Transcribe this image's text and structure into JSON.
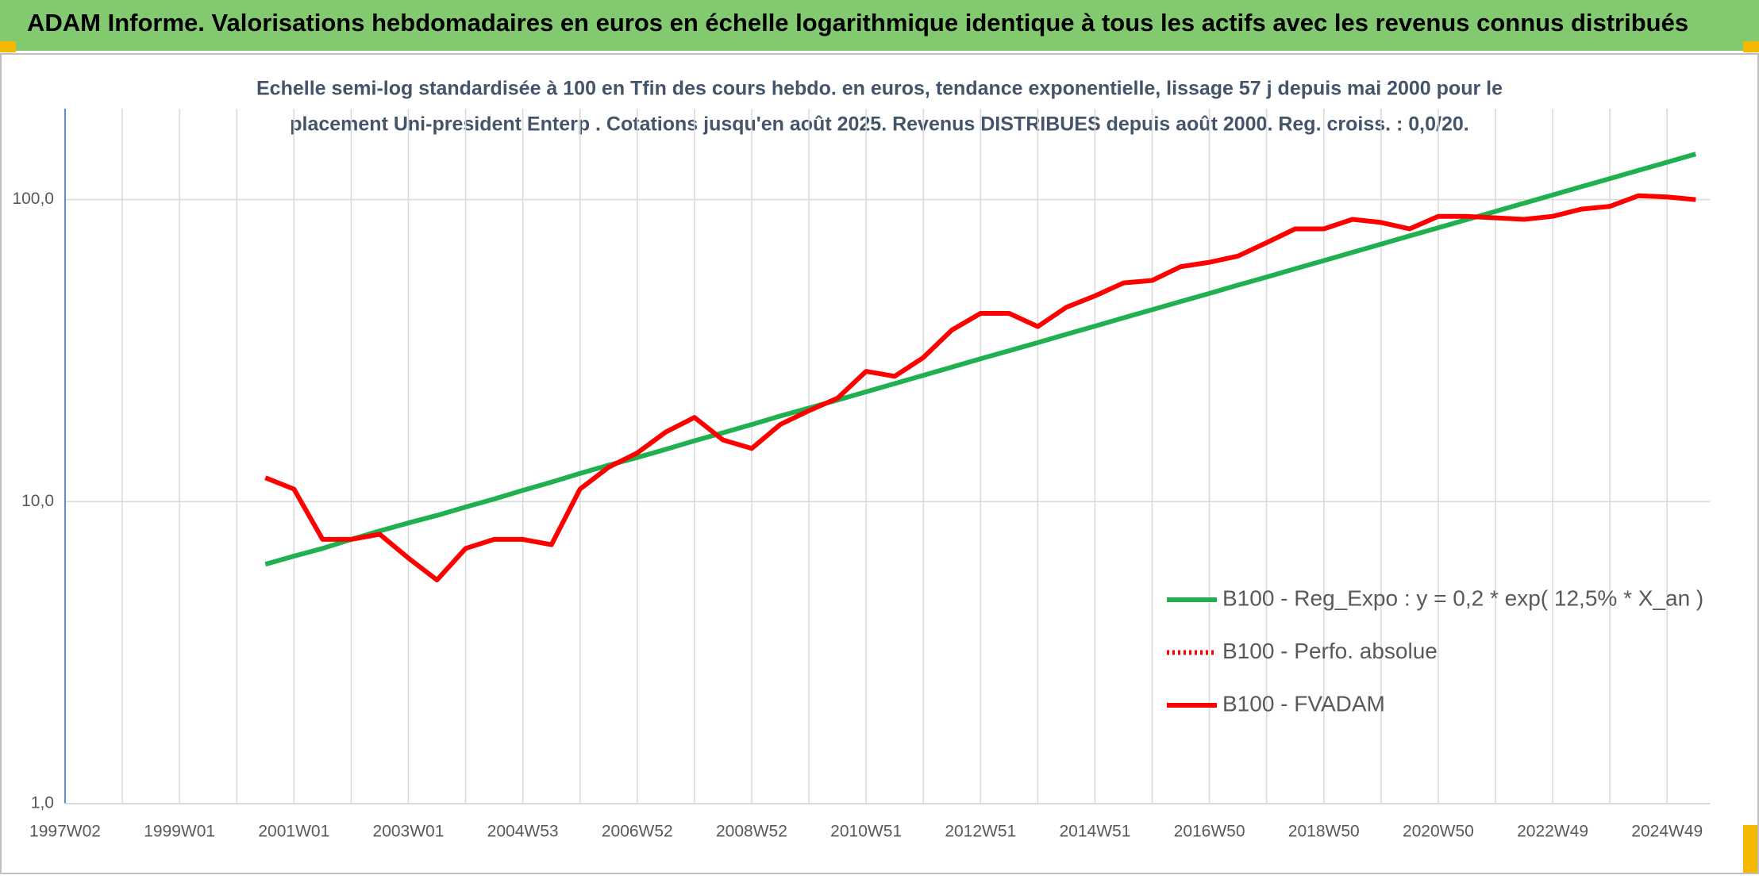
{
  "chart_data": {
    "type": "line",
    "title": "ADAM Informe. Valorisations hebdomadaires en euros en échelle logarithmique identique à tous les actifs avec les revenus connus distribués",
    "subtitle": [
      "Echelle semi-log standardisée à 100 en Tfin des cours hebdo. en euros, tendance exponentielle, lissage 57 j depuis mai 2000 pour le",
      "placement Uni-president Enterp . Cotations jusqu'en août 2025. Revenus DISTRIBUES depuis août 2000. Reg. croiss. : 0,0/20."
    ],
    "log_scale": true,
    "grid": true,
    "legend": "lower right",
    "ylim": [
      1,
      200
    ],
    "yticks": [
      {
        "value": 1,
        "label": "1,0"
      },
      {
        "value": 10,
        "label": "10,0"
      },
      {
        "value": 100,
        "label": "100,0"
      }
    ],
    "categories": [
      "1997W02",
      null,
      null,
      null,
      "1999W01",
      null,
      null,
      null,
      "2001W01",
      null,
      null,
      null,
      "2003W01",
      null,
      null,
      null,
      "2004W53",
      null,
      null,
      null,
      "2006W52",
      null,
      null,
      null,
      "2008W52",
      null,
      null,
      null,
      "2010W51",
      null,
      null,
      null,
      "2012W51",
      null,
      null,
      null,
      "2014W51",
      null,
      null,
      null,
      "2016W50",
      null,
      null,
      null,
      "2018W50",
      null,
      null,
      null,
      "2020W50",
      null,
      null,
      null,
      "2022W49",
      null,
      null,
      null,
      "2024W49",
      null
    ],
    "series": [
      {
        "name": "B100 - Reg_Expo : y = 0,2 * exp( 12,5% *  X_an )",
        "color": "#1fb04f",
        "style": "solid",
        "values": [
          null,
          null,
          null,
          null,
          null,
          null,
          null,
          6.2,
          6.6,
          7.0,
          7.5,
          8.0,
          8.5,
          9.0,
          9.6,
          10.2,
          10.9,
          11.6,
          12.4,
          13.2,
          14.0,
          14.9,
          15.9,
          16.9,
          18.0,
          19.2,
          20.4,
          21.7,
          23.1,
          24.6,
          26.2,
          27.9,
          29.7,
          31.6,
          33.6,
          35.8,
          38.1,
          40.6,
          43.2,
          46.0,
          48.9,
          52.1,
          55.4,
          59.0,
          62.8,
          66.9,
          71.2,
          75.8,
          80.7,
          85.9,
          91.4,
          97.3,
          103.6,
          110.3,
          117.4,
          125.0,
          133.0,
          141.6
        ]
      },
      {
        "name": "B100 - Perfo. absolue",
        "color": "#ff0000",
        "style": "dotted",
        "values": [
          null,
          null,
          null,
          null,
          null,
          null,
          null,
          null,
          null,
          null,
          null,
          null,
          null,
          null,
          null,
          null,
          null,
          null,
          null,
          null,
          null,
          null,
          null,
          null,
          null,
          null,
          null,
          null,
          null,
          null,
          null,
          null,
          null,
          null,
          null,
          null,
          null,
          null,
          null,
          null,
          null,
          null,
          null,
          null,
          null,
          null,
          null,
          null,
          null,
          null,
          null,
          null,
          null,
          null,
          null,
          null,
          null,
          null
        ]
      },
      {
        "name": "B100 - FVADAM",
        "color": "#ff0000",
        "style": "solid",
        "values": [
          null,
          null,
          null,
          null,
          null,
          null,
          null,
          12,
          11,
          7.5,
          7.5,
          7.8,
          6.5,
          5.5,
          7,
          7.5,
          7.5,
          7.2,
          11,
          13,
          14.5,
          17,
          19,
          16,
          15,
          18,
          20,
          22,
          27,
          26,
          30,
          37,
          42,
          42,
          38,
          44,
          48,
          53,
          54,
          60,
          62,
          65,
          72,
          80,
          80,
          86,
          84,
          80,
          88,
          88,
          87,
          86,
          88,
          93,
          95,
          103,
          102,
          100
        ]
      }
    ]
  }
}
